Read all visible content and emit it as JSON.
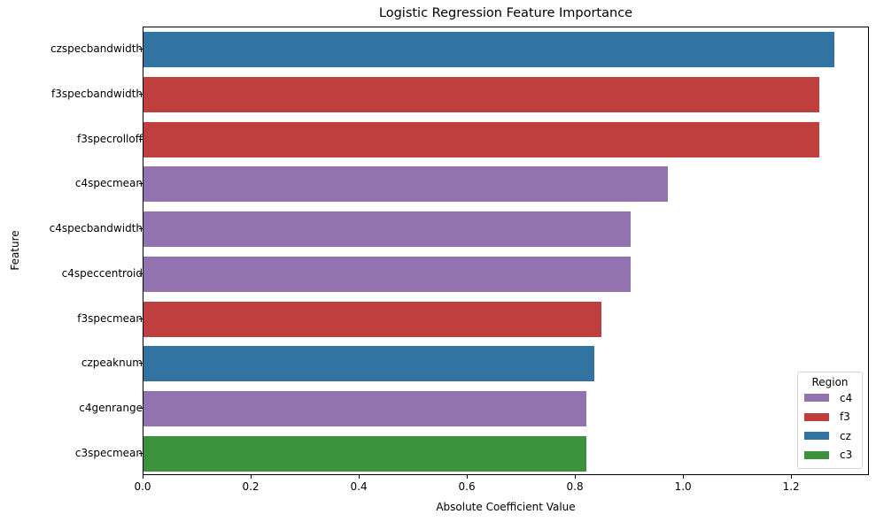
{
  "chart_data": {
    "type": "bar",
    "orientation": "horizontal",
    "title": "Logistic Regression Feature Importance",
    "xlabel": "Absolute Coefficient Value",
    "ylabel": "Feature",
    "xlim": [
      0,
      1.344
    ],
    "xticks": [
      0.0,
      0.2,
      0.4,
      0.6,
      0.8,
      1.0,
      1.2
    ],
    "xtick_labels": [
      "0.0",
      "0.2",
      "0.4",
      "0.6",
      "0.8",
      "1.0",
      "1.2"
    ],
    "grid": false,
    "legend_position": "lower right",
    "legend_title": "Region",
    "categories": [
      "czspecbandwidth",
      "f3specbandwidth",
      "f3specrolloff",
      "c4specmean",
      "c4specbandwidth",
      "c4speccentroid",
      "f3specmean",
      "czpeaknum",
      "c4genrange",
      "c3specmean"
    ],
    "values": [
      1.278,
      1.25,
      1.25,
      0.971,
      0.901,
      0.901,
      0.847,
      0.834,
      0.82,
      0.819
    ],
    "hue": [
      "cz",
      "f3",
      "f3",
      "c4",
      "c4",
      "c4",
      "f3",
      "cz",
      "c4",
      "c3"
    ],
    "legend": [
      {
        "label": "c4",
        "color": "#9372b0"
      },
      {
        "label": "f3",
        "color": "#bf3e3e"
      },
      {
        "label": "cz",
        "color": "#3274a1"
      },
      {
        "label": "c3",
        "color": "#3a923a"
      }
    ],
    "colors": {
      "c4": "#9372b0",
      "f3": "#bf3e3e",
      "cz": "#3274a1",
      "c3": "#3a923a"
    }
  }
}
